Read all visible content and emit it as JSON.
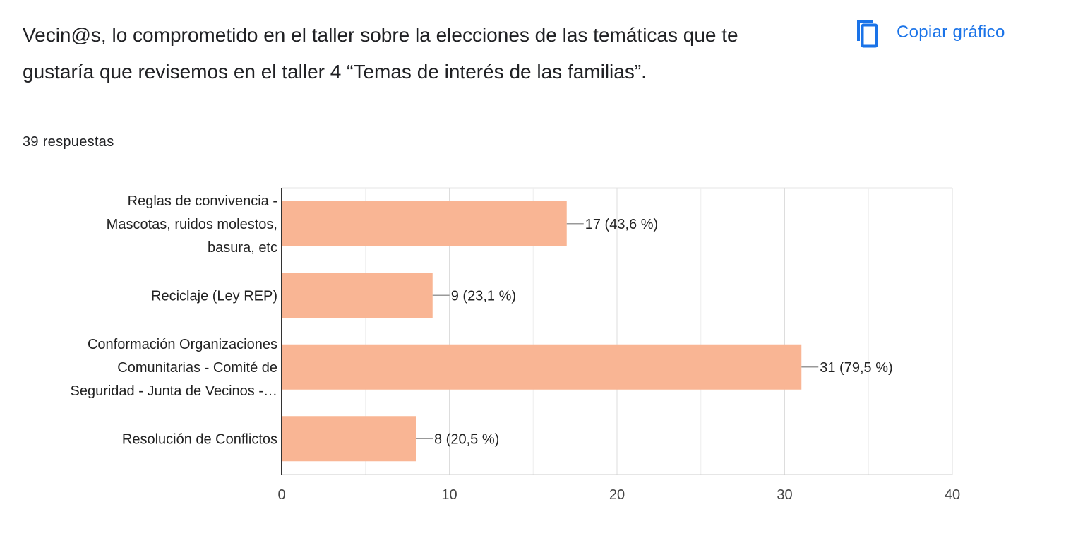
{
  "question": {
    "title": "Vecin@s, lo comprometido en el taller sobre la elecciones de las temáticas que te gustaría que revisemos en el taller 4 “Temas de interés de las familias”.",
    "response_count": "39 respuestas"
  },
  "toolbar": {
    "copy_label": "Copiar gráfico",
    "copy_icon": "copy-icon"
  },
  "colors": {
    "bar": "#f9b594",
    "accent": "#1a73e8",
    "grid": "#e6e6e6",
    "axis": "#333333"
  },
  "chart_data": {
    "type": "bar",
    "orientation": "horizontal",
    "categories": [
      [
        "Reglas de convivencia -",
        "Mascotas, ruidos molestos,",
        "basura, etc"
      ],
      [
        "Reciclaje (Ley REP)"
      ],
      [
        "Conformación Organizaciones",
        "Comunitarias - Comité de",
        "Seguridad - Junta de Vecinos -…"
      ],
      [
        "Resolución de Conflictos"
      ]
    ],
    "values": [
      17,
      9,
      31,
      8
    ],
    "data_labels": [
      "17 (43,6 %)",
      "9 (23,1 %)",
      "31 (79,5 %)",
      "8 (20,5 %)"
    ],
    "xlim": [
      0,
      40
    ],
    "ticks": [
      0,
      10,
      20,
      30,
      40
    ],
    "tick_labels": [
      "0",
      "10",
      "20",
      "30",
      "40"
    ],
    "grid": true
  }
}
